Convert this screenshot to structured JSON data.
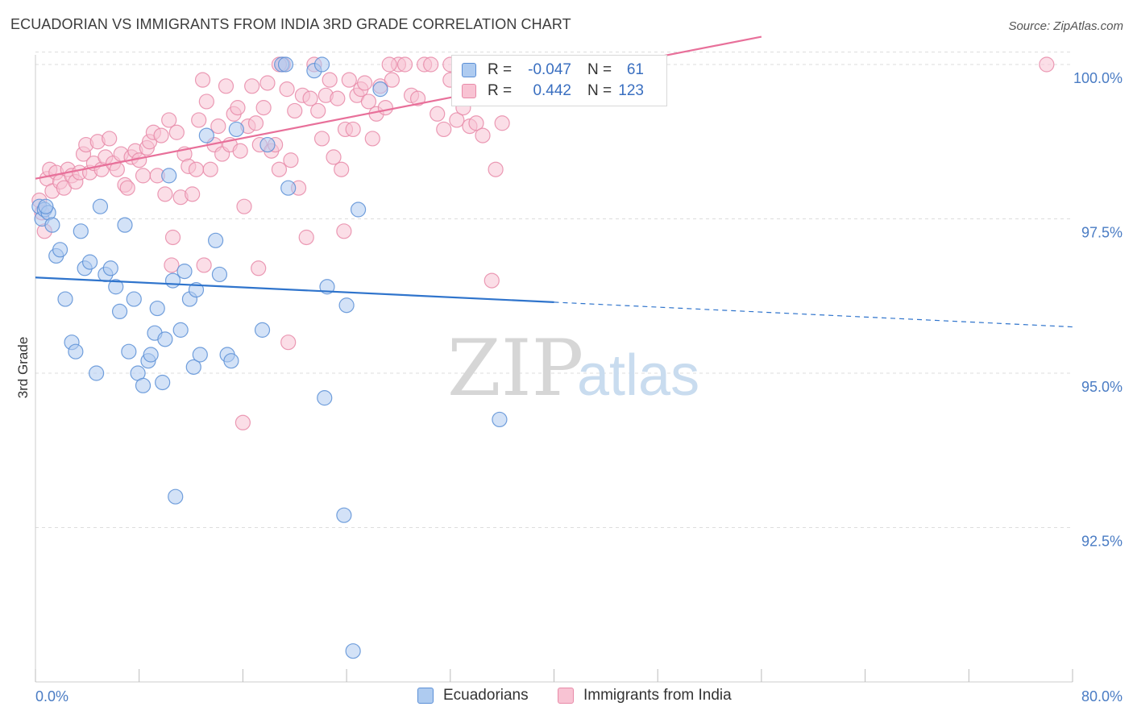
{
  "header": {
    "title": "ECUADORIAN VS IMMIGRANTS FROM INDIA 3RD GRADE CORRELATION CHART",
    "source": "Source: ZipAtlas.com"
  },
  "watermark": {
    "zip": "ZIP",
    "atlas": "atlas"
  },
  "legend_top": {
    "rows": [
      {
        "r_label": "R =",
        "r_value": "-0.047",
        "n_label": "N =",
        "n_value": "61"
      },
      {
        "r_label": "R =",
        "r_value": "0.442",
        "n_label": "N =",
        "n_value": "123"
      }
    ]
  },
  "legend_bottom": {
    "items": [
      {
        "label": "Ecuadorians"
      },
      {
        "label": "Immigrants from India"
      }
    ]
  },
  "colors": {
    "ecuadorian_fill": "#aecbf0",
    "ecuadorian_stroke": "#5b8fd6",
    "ecuadorian_line": "#2f74cc",
    "india_fill": "#f8c3d3",
    "india_stroke": "#e88aa8",
    "india_line": "#e8709a",
    "axis_label": "#4a7cc4",
    "grid": "#dddddd"
  },
  "chart_data": {
    "type": "scatter",
    "title": "ECUADORIAN VS IMMIGRANTS FROM INDIA 3RD GRADE CORRELATION CHART",
    "xlabel": "",
    "ylabel": "3rd Grade",
    "xlim": [
      0,
      80
    ],
    "ylim": [
      90.5,
      100.45
    ],
    "x_tick_labels": [
      "0.0%",
      "80.0%"
    ],
    "y_ticks": [
      92.5,
      95.0,
      97.5,
      100.0
    ],
    "y_tick_labels": [
      "92.5%",
      "95.0%",
      "97.5%",
      "100.0%"
    ],
    "grid": true,
    "legend_position": "bottom-center",
    "series": [
      {
        "name": "Ecuadorians",
        "r": -0.047,
        "n": 61,
        "trend": {
          "x0": 0,
          "y0": 96.55,
          "x1": 80,
          "y1": 95.75,
          "solid_until_x": 40
        },
        "points": [
          [
            0.3,
            97.7
          ],
          [
            0.5,
            97.5
          ],
          [
            0.7,
            97.65
          ],
          [
            1.0,
            97.6
          ],
          [
            1.3,
            97.4
          ],
          [
            1.6,
            96.9
          ],
          [
            1.9,
            97.0
          ],
          [
            2.3,
            96.2
          ],
          [
            2.8,
            95.5
          ],
          [
            3.1,
            95.35
          ],
          [
            3.5,
            97.3
          ],
          [
            3.8,
            96.7
          ],
          [
            4.2,
            96.8
          ],
          [
            4.7,
            95.0
          ],
          [
            5.0,
            97.7
          ],
          [
            5.4,
            96.6
          ],
          [
            5.8,
            96.7
          ],
          [
            6.2,
            96.4
          ],
          [
            6.5,
            96.0
          ],
          [
            6.9,
            97.4
          ],
          [
            7.2,
            95.35
          ],
          [
            7.6,
            96.2
          ],
          [
            7.9,
            95.0
          ],
          [
            8.3,
            94.8
          ],
          [
            8.7,
            95.2
          ],
          [
            8.9,
            95.3
          ],
          [
            9.2,
            95.65
          ],
          [
            9.4,
            96.05
          ],
          [
            9.8,
            94.85
          ],
          [
            10.0,
            95.55
          ],
          [
            10.3,
            98.2
          ],
          [
            10.6,
            96.5
          ],
          [
            10.8,
            93.0
          ],
          [
            11.2,
            95.7
          ],
          [
            11.5,
            96.65
          ],
          [
            11.9,
            96.2
          ],
          [
            12.2,
            95.1
          ],
          [
            12.4,
            96.35
          ],
          [
            12.7,
            95.3
          ],
          [
            13.2,
            98.85
          ],
          [
            13.9,
            97.15
          ],
          [
            14.2,
            96.6
          ],
          [
            14.8,
            95.3
          ],
          [
            15.1,
            95.2
          ],
          [
            15.5,
            98.95
          ],
          [
            17.9,
            98.7
          ],
          [
            17.5,
            95.7
          ],
          [
            19.0,
            100.0
          ],
          [
            19.3,
            100.0
          ],
          [
            19.5,
            98.0
          ],
          [
            21.5,
            99.9
          ],
          [
            22.1,
            100.0
          ],
          [
            22.3,
            94.6
          ],
          [
            22.5,
            96.4
          ],
          [
            23.8,
            92.7
          ],
          [
            24.0,
            96.1
          ],
          [
            24.9,
            97.65
          ],
          [
            26.6,
            99.6
          ],
          [
            35.8,
            94.25
          ],
          [
            24.5,
            90.5
          ],
          [
            0.8,
            97.7
          ]
        ]
      },
      {
        "name": "Immigrants from India",
        "r": 0.442,
        "n": 123,
        "trend": {
          "x0": 0,
          "y0": 98.15,
          "x1": 56,
          "y1": 100.45
        },
        "points": [
          [
            0.3,
            97.8
          ],
          [
            0.5,
            97.6
          ],
          [
            0.7,
            97.3
          ],
          [
            0.9,
            98.15
          ],
          [
            1.1,
            98.3
          ],
          [
            1.3,
            97.95
          ],
          [
            1.6,
            98.25
          ],
          [
            1.9,
            98.1
          ],
          [
            2.2,
            98.0
          ],
          [
            2.5,
            98.3
          ],
          [
            2.8,
            98.2
          ],
          [
            3.1,
            98.1
          ],
          [
            3.4,
            98.25
          ],
          [
            3.7,
            98.55
          ],
          [
            3.9,
            98.7
          ],
          [
            4.2,
            98.25
          ],
          [
            4.5,
            98.4
          ],
          [
            4.8,
            98.75
          ],
          [
            5.1,
            98.3
          ],
          [
            5.4,
            98.5
          ],
          [
            5.7,
            98.8
          ],
          [
            6.0,
            98.4
          ],
          [
            6.3,
            98.3
          ],
          [
            6.6,
            98.55
          ],
          [
            6.9,
            98.05
          ],
          [
            7.1,
            98.0
          ],
          [
            7.4,
            98.5
          ],
          [
            7.7,
            98.6
          ],
          [
            8.0,
            98.45
          ],
          [
            8.3,
            98.2
          ],
          [
            8.6,
            98.65
          ],
          [
            8.8,
            98.75
          ],
          [
            9.1,
            98.9
          ],
          [
            9.4,
            98.2
          ],
          [
            9.7,
            98.85
          ],
          [
            10.0,
            97.9
          ],
          [
            10.3,
            99.1
          ],
          [
            10.6,
            97.2
          ],
          [
            10.9,
            98.9
          ],
          [
            11.2,
            97.85
          ],
          [
            11.5,
            98.55
          ],
          [
            11.8,
            98.35
          ],
          [
            12.1,
            97.9
          ],
          [
            12.4,
            98.3
          ],
          [
            12.6,
            99.1
          ],
          [
            12.9,
            99.75
          ],
          [
            13.2,
            99.4
          ],
          [
            13.5,
            98.3
          ],
          [
            13.8,
            98.7
          ],
          [
            14.1,
            99.0
          ],
          [
            14.4,
            98.55
          ],
          [
            14.7,
            99.65
          ],
          [
            15.0,
            98.7
          ],
          [
            15.3,
            99.2
          ],
          [
            15.6,
            99.3
          ],
          [
            15.8,
            98.6
          ],
          [
            16.1,
            97.7
          ],
          [
            16.4,
            99.0
          ],
          [
            16.7,
            99.65
          ],
          [
            17.0,
            99.05
          ],
          [
            17.3,
            98.7
          ],
          [
            17.6,
            99.3
          ],
          [
            17.9,
            99.7
          ],
          [
            18.2,
            98.6
          ],
          [
            18.5,
            98.7
          ],
          [
            18.8,
            98.3
          ],
          [
            19.1,
            100.0
          ],
          [
            19.4,
            99.6
          ],
          [
            19.7,
            98.45
          ],
          [
            20.0,
            99.25
          ],
          [
            20.3,
            98.0
          ],
          [
            20.6,
            99.5
          ],
          [
            20.9,
            97.2
          ],
          [
            21.2,
            99.45
          ],
          [
            21.5,
            100.0
          ],
          [
            21.8,
            99.25
          ],
          [
            22.1,
            98.8
          ],
          [
            22.4,
            99.5
          ],
          [
            22.7,
            99.75
          ],
          [
            23.0,
            98.5
          ],
          [
            23.3,
            99.45
          ],
          [
            23.6,
            98.3
          ],
          [
            23.9,
            98.95
          ],
          [
            24.2,
            99.75
          ],
          [
            24.5,
            98.95
          ],
          [
            24.8,
            99.5
          ],
          [
            25.1,
            99.6
          ],
          [
            25.4,
            99.7
          ],
          [
            25.7,
            99.4
          ],
          [
            26.0,
            98.8
          ],
          [
            26.3,
            99.2
          ],
          [
            26.6,
            99.65
          ],
          [
            27.0,
            99.3
          ],
          [
            27.5,
            99.75
          ],
          [
            28.0,
            100.0
          ],
          [
            28.5,
            100.0
          ],
          [
            29.0,
            99.5
          ],
          [
            29.5,
            99.45
          ],
          [
            30.0,
            100.0
          ],
          [
            30.5,
            100.0
          ],
          [
            31.0,
            99.2
          ],
          [
            31.5,
            98.95
          ],
          [
            32.0,
            99.75
          ],
          [
            32.5,
            99.1
          ],
          [
            33.0,
            99.3
          ],
          [
            33.5,
            99.0
          ],
          [
            34.0,
            99.05
          ],
          [
            34.5,
            98.85
          ],
          [
            35.0,
            99.65
          ],
          [
            35.5,
            98.3
          ],
          [
            36.0,
            99.05
          ],
          [
            36.5,
            99.8
          ],
          [
            10.5,
            96.75
          ],
          [
            13.0,
            96.75
          ],
          [
            17.2,
            96.7
          ],
          [
            23.8,
            97.3
          ],
          [
            19.5,
            95.5
          ],
          [
            35.2,
            96.5
          ],
          [
            16.0,
            94.2
          ],
          [
            78.0,
            100.0
          ],
          [
            32.0,
            100.0
          ],
          [
            27.3,
            100.0
          ],
          [
            18.8,
            100.0
          ]
        ]
      }
    ]
  }
}
